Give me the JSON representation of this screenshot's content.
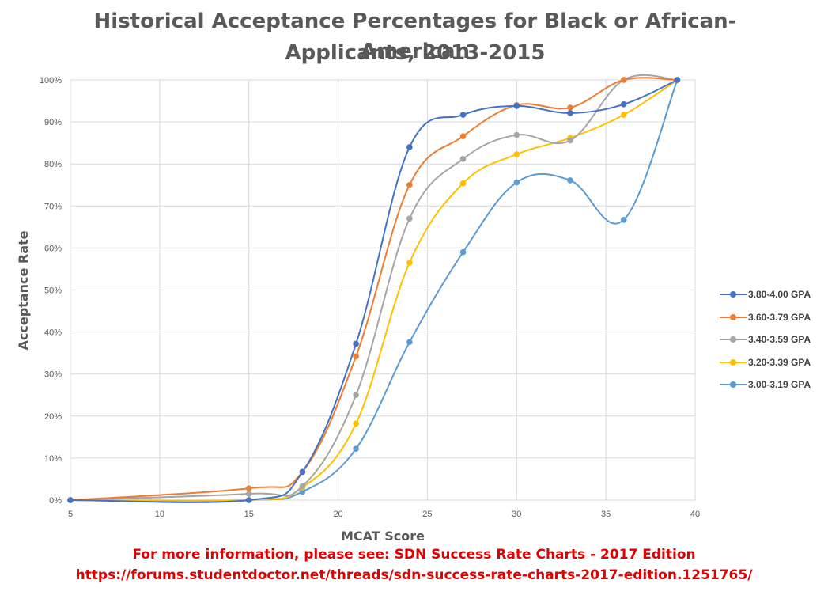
{
  "chart_data": {
    "type": "line",
    "title": "Historical Acceptance Percentages for Black or African-American",
    "title_line2": "Applicants, 2013-2015",
    "xlabel": "MCAT Score",
    "ylabel": "Acceptance Rate",
    "xlim": [
      5,
      40
    ],
    "ylim": [
      0,
      100
    ],
    "x_ticks": [
      "5",
      "10",
      "15",
      "20",
      "25",
      "30",
      "35",
      "40"
    ],
    "y_ticks": [
      "0%",
      "10%",
      "20%",
      "30%",
      "40%",
      "50%",
      "60%",
      "70%",
      "80%",
      "90%",
      "100%"
    ],
    "grid": true,
    "legend_position": "right",
    "series": [
      {
        "name": "3.80-4.00 GPA",
        "color": "#4472C4",
        "points": [
          [
            5,
            0
          ],
          [
            15,
            0
          ],
          [
            18,
            6.7
          ],
          [
            21,
            37.2
          ],
          [
            24,
            84
          ],
          [
            27,
            91.7
          ],
          [
            30,
            93.8
          ],
          [
            33,
            92.1
          ],
          [
            36,
            94.2
          ],
          [
            39,
            100
          ]
        ]
      },
      {
        "name": "3.60-3.79 GPA",
        "color": "#ED7D31",
        "points": [
          [
            5,
            0
          ],
          [
            15,
            2.8
          ],
          [
            18,
            6.7
          ],
          [
            21,
            34.2
          ],
          [
            24,
            75
          ],
          [
            27,
            86.6
          ],
          [
            30,
            94
          ],
          [
            33,
            93.4
          ],
          [
            36,
            100
          ],
          [
            39,
            100
          ]
        ]
      },
      {
        "name": "3.40-3.59 GPA",
        "color": "#A5A5A5",
        "points": [
          [
            5,
            0
          ],
          [
            15,
            1.5
          ],
          [
            18,
            3.3
          ],
          [
            21,
            25
          ],
          [
            24,
            67
          ],
          [
            27,
            81.2
          ],
          [
            30,
            86.9
          ],
          [
            33,
            85.6
          ],
          [
            36,
            100
          ],
          [
            39,
            100
          ]
        ]
      },
      {
        "name": "3.20-3.39 GPA",
        "color": "#FFC000",
        "points": [
          [
            5,
            0
          ],
          [
            15,
            0
          ],
          [
            18,
            3
          ],
          [
            21,
            18.2
          ],
          [
            24,
            56.5
          ],
          [
            27,
            75.4
          ],
          [
            30,
            82.3
          ],
          [
            33,
            86.2
          ],
          [
            36,
            91.7
          ],
          [
            39,
            100
          ]
        ]
      },
      {
        "name": "3.00-3.19 GPA",
        "color": "#5B9BD5",
        "points": [
          [
            5,
            0
          ],
          [
            15,
            0
          ],
          [
            18,
            2
          ],
          [
            21,
            12.2
          ],
          [
            24,
            37.6
          ],
          [
            27,
            59
          ],
          [
            30,
            75.6
          ],
          [
            33,
            76.1
          ],
          [
            36,
            66.7
          ],
          [
            39,
            100
          ]
        ]
      }
    ]
  },
  "source": {
    "line1": "For more information, please see: SDN Success Rate Charts - 2017 Edition",
    "line2": "https://forums.studentdoctor.net/threads/sdn-success-rate-charts-2017-edition.1251765/",
    "color": "#E00000"
  }
}
